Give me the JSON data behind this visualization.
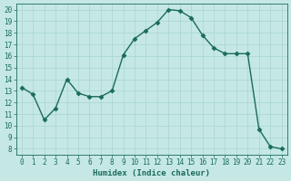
{
  "x": [
    0,
    1,
    2,
    3,
    4,
    5,
    6,
    7,
    8,
    9,
    10,
    11,
    12,
    13,
    14,
    15,
    16,
    17,
    18,
    19,
    20,
    21,
    22,
    23
  ],
  "y": [
    13.3,
    12.7,
    10.5,
    11.5,
    14.0,
    12.8,
    12.5,
    12.5,
    13.0,
    16.1,
    17.5,
    18.2,
    18.9,
    20.0,
    19.9,
    19.3,
    17.8,
    16.7,
    16.2,
    16.2,
    16.2,
    9.7,
    8.2,
    8.0
  ],
  "line_color": "#1a6b5a",
  "marker": "D",
  "markersize": 2.5,
  "linewidth": 1.0,
  "bg_color": "#c5e8e5",
  "grid_color": "#a8d5d0",
  "xlabel": "Humidex (Indice chaleur)",
  "xlim": [
    -0.5,
    23.5
  ],
  "ylim": [
    7.5,
    20.5
  ],
  "yticks": [
    8,
    9,
    10,
    11,
    12,
    13,
    14,
    15,
    16,
    17,
    18,
    19,
    20
  ],
  "xticks": [
    0,
    1,
    2,
    3,
    4,
    5,
    6,
    7,
    8,
    9,
    10,
    11,
    12,
    13,
    14,
    15,
    16,
    17,
    18,
    19,
    20,
    21,
    22,
    23
  ],
  "label_fontsize": 6.5,
  "tick_fontsize": 5.5
}
